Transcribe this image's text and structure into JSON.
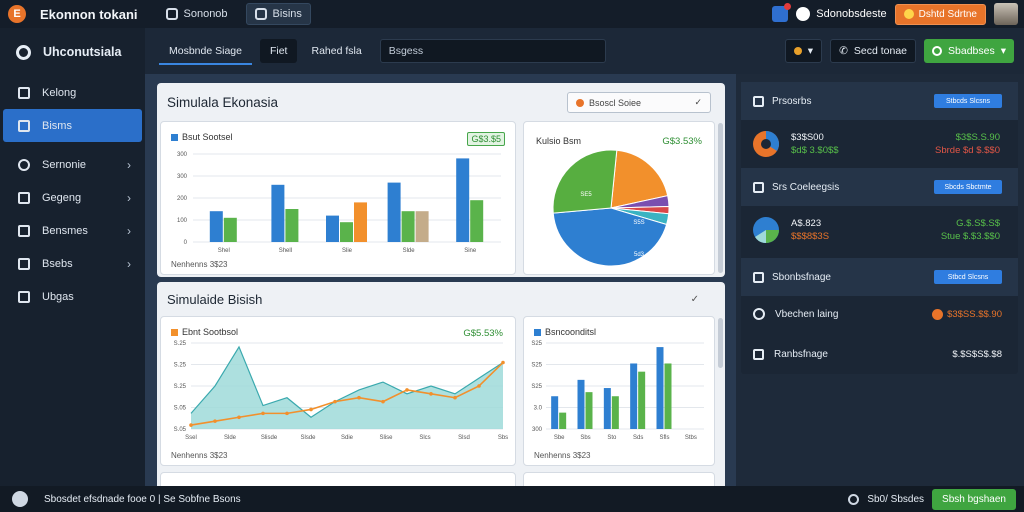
{
  "topbar": {
    "logo": "E",
    "app_title": "Ekonnon tokani",
    "tabs": [
      {
        "label": "Sononob",
        "icon": "dashboard-icon"
      },
      {
        "label": "Bisins",
        "icon": "grid-icon"
      }
    ],
    "user_label": "Sdonobsdeste",
    "promo_label": "Dshtd Sdrtne"
  },
  "sidebar": {
    "brand": "Uhconutsiala",
    "items": [
      {
        "label": "Kelong",
        "icon": "building-icon",
        "active": false,
        "chevron": false
      },
      {
        "label": "Bisms",
        "icon": "grid-icon",
        "active": true,
        "chevron": false
      },
      {
        "label": "Sernonie",
        "icon": "user-icon",
        "active": false,
        "chevron": true
      },
      {
        "label": "Gegeng",
        "icon": "report-icon",
        "active": false,
        "chevron": true
      },
      {
        "label": "Bensmes",
        "icon": "chart-icon",
        "active": false,
        "chevron": true
      },
      {
        "label": "Bsebs",
        "icon": "table-icon",
        "active": false,
        "chevron": true
      },
      {
        "label": "Ubgas",
        "icon": "users-icon",
        "active": false,
        "chevron": false
      }
    ]
  },
  "toolbar": {
    "tabs": [
      "Mosbnde Siage",
      "Fiet",
      "Rahed fsla"
    ],
    "search_placeholder": "Bsgess",
    "select_label": "▾",
    "filter_label": "Secd tonae",
    "green_button": "Sbadbses"
  },
  "panel1": {
    "title": "Simulala Ekonasia",
    "dropdown": "Bsoscl Soiee",
    "bar_card": {
      "label": "Bsut Sootsel",
      "badge": "G$3.$5",
      "foot": "Nenhenns 3$23",
      "y_ticks": [
        "300",
        "300",
        "200",
        "100",
        "0"
      ],
      "x_ticks": [
        "Shel",
        "Shell",
        "Slie",
        "Slde",
        "Sine"
      ]
    },
    "pie_card": {
      "label": "Kulsio Bsm",
      "pct": "G$3.53%",
      "slice_labels": [
        "SE5",
        "S5S",
        "5d3"
      ]
    }
  },
  "panel2": {
    "title": "Simulaide Bisish",
    "area_card": {
      "label": "Ebnt Sootbsol",
      "pct": "G$5.53%",
      "foot": "Nenhenns 3$23",
      "y_ticks": [
        "S.25",
        "S.25",
        "S.25",
        "S.05",
        "S.05"
      ],
      "x_ticks": [
        "Ssel",
        "Slde",
        "Slisde",
        "Slsde",
        "Sdie",
        "Slise",
        "Slcs",
        "Slsd",
        "Sbs"
      ]
    },
    "bar_card2": {
      "label": "Bsncoonditsl",
      "foot": "Nenhenns 3$23",
      "y_ticks": [
        "S25",
        "S25",
        "S25",
        "3.0",
        "300"
      ],
      "x_ticks": [
        "Sbe",
        "Sbs",
        "Sto",
        "Sds",
        "Sfls",
        "Stbs"
      ]
    }
  },
  "right_panel": {
    "sections": [
      {
        "title": "Prsosrbs",
        "button": "Stbcds Slcsns",
        "left": [
          "$3$S00",
          "$d$ 3.$0$$"
        ],
        "right": [
          "$3$S.S.90",
          "Sbrde $d $.$$0"
        ]
      },
      {
        "title": "Srs Coeleegsis",
        "button": "Sbcds Sbctmte",
        "left": [
          "A$.823",
          "$$$8$3S"
        ],
        "right": [
          "G.$.S$.S$",
          "Stue $.$3.$$0"
        ]
      }
    ],
    "row3": {
      "title": "Sbonbsfnage",
      "button": "Stbcd Slcsns"
    },
    "row4": {
      "title": "Vbechen laing",
      "value": "$3$SS.$$.90"
    },
    "row5": {
      "title": "Ranbsfnage",
      "value": "$.$S$S$.$8"
    }
  },
  "statusbar": {
    "text": "Sbosdet efsdnade fooe 0 | Se Sobfne Bsons",
    "right_label": "Sb0/ Sbsdes",
    "button": "Sbsh bgshaen"
  },
  "colors": {
    "blue": "#2e7fd1",
    "orange": "#f2902c",
    "green": "#5ab34b",
    "tan": "#c4ac8a",
    "teal_area": "#9fdad9"
  },
  "chart_data": [
    {
      "type": "bar",
      "categories": [
        "Shel",
        "Shell",
        "Slie",
        "Slde",
        "Sine"
      ],
      "series": [
        {
          "name": "Bsut Sootsel",
          "values": [
            140,
            260,
            120,
            270,
            380
          ]
        },
        {
          "name": "",
          "values": [
            110,
            150,
            90,
            140,
            190
          ]
        },
        {
          "name": "",
          "values": [
            0,
            0,
            180,
            140,
            0
          ]
        }
      ],
      "ylim": [
        0,
        400
      ]
    },
    {
      "type": "pie",
      "labels": [
        "blue",
        "green",
        "orange",
        "purple",
        "red",
        "teal"
      ],
      "values": [
        44,
        28,
        20,
        3,
        2,
        3
      ]
    },
    {
      "type": "area",
      "series": [
        {
          "name": "",
          "values": [
            0.2,
            0.55,
            1.05,
            0.3,
            0.4,
            0.15,
            0.35,
            0.5,
            0.6,
            0.45,
            0.55,
            0.45,
            0.65,
            0.85
          ]
        },
        {
          "name": "Ebnt Sootbsol",
          "values": [
            0.05,
            0.1,
            0.15,
            0.2,
            0.2,
            0.25,
            0.35,
            0.4,
            0.35,
            0.5,
            0.45,
            0.4,
            0.55,
            0.85
          ]
        }
      ]
    },
    {
      "type": "bar",
      "categories": [
        "Sbe",
        "Sbs",
        "Sto",
        "Sds",
        "Sfls",
        "Stbs"
      ],
      "series": [
        {
          "name": "Bsncoonditsl",
          "values": [
            0.4,
            0.6,
            0.5,
            0.8,
            1.0,
            0.0
          ]
        },
        {
          "name": "",
          "values": [
            0.2,
            0.45,
            0.4,
            0.7,
            0.8,
            0.0
          ]
        }
      ]
    }
  ]
}
